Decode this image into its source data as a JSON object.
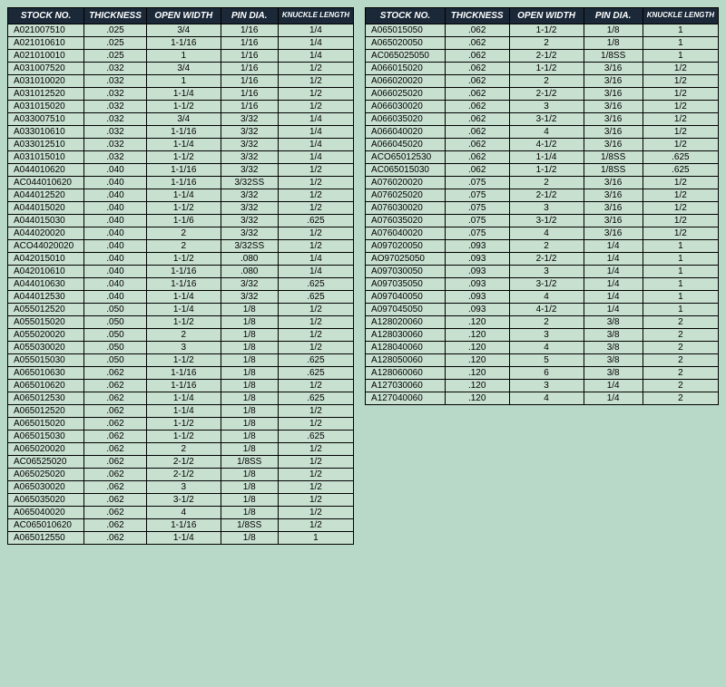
{
  "headers": [
    "STOCK NO.",
    "THICKNESS",
    "OPEN WIDTH",
    "PIN DIA.",
    "KNUCKLE LENGTH"
  ],
  "table1": [
    [
      "A021007510",
      ".025",
      "3/4",
      "1/16",
      "1/4"
    ],
    [
      "A021010610",
      ".025",
      "1-1/16",
      "1/16",
      "1/4"
    ],
    [
      "A021010010",
      ".025",
      "1",
      "1/16",
      "1/4"
    ],
    [
      "A031007520",
      ".032",
      "3/4",
      "1/16",
      "1/2"
    ],
    [
      "A031010020",
      ".032",
      "1",
      "1/16",
      "1/2"
    ],
    [
      "A031012520",
      ".032",
      "1-1/4",
      "1/16",
      "1/2"
    ],
    [
      "A031015020",
      ".032",
      "1-1/2",
      "1/16",
      "1/2"
    ],
    [
      "A033007510",
      ".032",
      "3/4",
      "3/32",
      "1/4"
    ],
    [
      "A033010610",
      ".032",
      "1-1/16",
      "3/32",
      "1/4"
    ],
    [
      "A033012510",
      ".032",
      "1-1/4",
      "3/32",
      "1/4"
    ],
    [
      "A031015010",
      ".032",
      "1-1/2",
      "3/32",
      "1/4"
    ],
    [
      "A044010620",
      ".040",
      "1-1/16",
      "3/32",
      "1/2"
    ],
    [
      "AC044010620",
      ".040",
      "1-1/16",
      "3/32SS",
      "1/2"
    ],
    [
      "A044012520",
      ".040",
      "1-1/4",
      "3/32",
      "1/2"
    ],
    [
      "A044015020",
      ".040",
      "1-1/2",
      "3/32",
      "1/2"
    ],
    [
      "A044015030",
      ".040",
      "1-1/6",
      "3/32",
      ".625"
    ],
    [
      "A044020020",
      ".040",
      "2",
      "3/32",
      "1/2"
    ],
    [
      "ACO44020020",
      ".040",
      "2",
      "3/32SS",
      "1/2"
    ],
    [
      "A042015010",
      ".040",
      "1-1/2",
      ".080",
      "1/4"
    ],
    [
      "A042010610",
      ".040",
      "1-1/16",
      ".080",
      "1/4"
    ],
    [
      "A044010630",
      ".040",
      "1-1/16",
      "3/32",
      ".625"
    ],
    [
      "A044012530",
      ".040",
      "1-1/4",
      "3/32",
      ".625"
    ],
    [
      "A055012520",
      ".050",
      "1-1/4",
      "1/8",
      "1/2"
    ],
    [
      "A055015020",
      ".050",
      "1-1/2",
      "1/8",
      "1/2"
    ],
    [
      "A055020020",
      ".050",
      "2",
      "1/8",
      "1/2"
    ],
    [
      "A055030020",
      ".050",
      "3",
      "1/8",
      "1/2"
    ],
    [
      "A055015030",
      ".050",
      "1-1/2",
      "1/8",
      ".625"
    ],
    [
      "A065010630",
      ".062",
      "1-1/16",
      "1/8",
      ".625"
    ],
    [
      "A065010620",
      ".062",
      "1-1/16",
      "1/8",
      "1/2"
    ],
    [
      "A065012530",
      ".062",
      "1-1/4",
      "1/8",
      ".625"
    ],
    [
      "A065012520",
      ".062",
      "1-1/4",
      "1/8",
      "1/2"
    ],
    [
      "A065015020",
      ".062",
      "1-1/2",
      "1/8",
      "1/2"
    ],
    [
      "A065015030",
      ".062",
      "1-1/2",
      "1/8",
      ".625"
    ],
    [
      "A065020020",
      ".062",
      "2",
      "1/8",
      "1/2"
    ],
    [
      "AC06525020",
      ".062",
      "2-1/2",
      "1/8SS",
      "1/2"
    ],
    [
      "A065025020",
      ".062",
      "2-1/2",
      "1/8",
      "1/2"
    ],
    [
      "A065030020",
      ".062",
      "3",
      "1/8",
      "1/2"
    ],
    [
      "A065035020",
      ".062",
      "3-1/2",
      "1/8",
      "1/2"
    ],
    [
      "A065040020",
      ".062",
      "4",
      "1/8",
      "1/2"
    ],
    [
      "AC065010620",
      ".062",
      "1-1/16",
      "1/8SS",
      "1/2"
    ],
    [
      "A065012550",
      ".062",
      "1-1/4",
      "1/8",
      "1"
    ]
  ],
  "table2": [
    [
      "A065015050",
      ".062",
      "1-1/2",
      "1/8",
      "1"
    ],
    [
      "A065020050",
      ".062",
      "2",
      "1/8",
      "1"
    ],
    [
      "AC065025050",
      ".062",
      "2-1/2",
      "1/8SS",
      "1"
    ],
    [
      "A066015020",
      ".062",
      "1-1/2",
      "3/16",
      "1/2"
    ],
    [
      "A066020020",
      ".062",
      "2",
      "3/16",
      "1/2"
    ],
    [
      "A066025020",
      ".062",
      "2-1/2",
      "3/16",
      "1/2"
    ],
    [
      "A066030020",
      ".062",
      "3",
      "3/16",
      "1/2"
    ],
    [
      "A066035020",
      ".062",
      "3-1/2",
      "3/16",
      "1/2"
    ],
    [
      "A066040020",
      ".062",
      "4",
      "3/16",
      "1/2"
    ],
    [
      "A066045020",
      ".062",
      "4-1/2",
      "3/16",
      "1/2"
    ],
    [
      "ACO65012530",
      ".062",
      "1-1/4",
      "1/8SS",
      ".625"
    ],
    [
      "AC065015030",
      ".062",
      "1-1/2",
      "1/8SS",
      ".625"
    ],
    [
      "A076020020",
      ".075",
      "2",
      "3/16",
      "1/2"
    ],
    [
      "A076025020",
      ".075",
      "2-1/2",
      "3/16",
      "1/2"
    ],
    [
      "A076030020",
      ".075",
      "3",
      "3/16",
      "1/2"
    ],
    [
      "A076035020",
      ".075",
      "3-1/2",
      "3/16",
      "1/2"
    ],
    [
      "A076040020",
      ".075",
      "4",
      "3/16",
      "1/2"
    ],
    [
      "A097020050",
      ".093",
      "2",
      "1/4",
      "1"
    ],
    [
      "AO97025050",
      ".093",
      "2-1/2",
      "1/4",
      "1"
    ],
    [
      "A097030050",
      ".093",
      "3",
      "1/4",
      "1"
    ],
    [
      "A097035050",
      ".093",
      "3-1/2",
      "1/4",
      "1"
    ],
    [
      "A097040050",
      ".093",
      "4",
      "1/4",
      "1"
    ],
    [
      "A097045050",
      ".093",
      "4-1/2",
      "1/4",
      "1"
    ],
    [
      "A128020060",
      ".120",
      "2",
      "3/8",
      "2"
    ],
    [
      "A128030060",
      ".120",
      "3",
      "3/8",
      "2"
    ],
    [
      "A128040060",
      ".120",
      "4",
      "3/8",
      "2"
    ],
    [
      "A128050060",
      ".120",
      "5",
      "3/8",
      "2"
    ],
    [
      "A128060060",
      ".120",
      "6",
      "3/8",
      "2"
    ],
    [
      "A127030060",
      ".120",
      "3",
      "1/4",
      "2"
    ],
    [
      "A127040060",
      ".120",
      "4",
      "1/4",
      "2"
    ]
  ]
}
